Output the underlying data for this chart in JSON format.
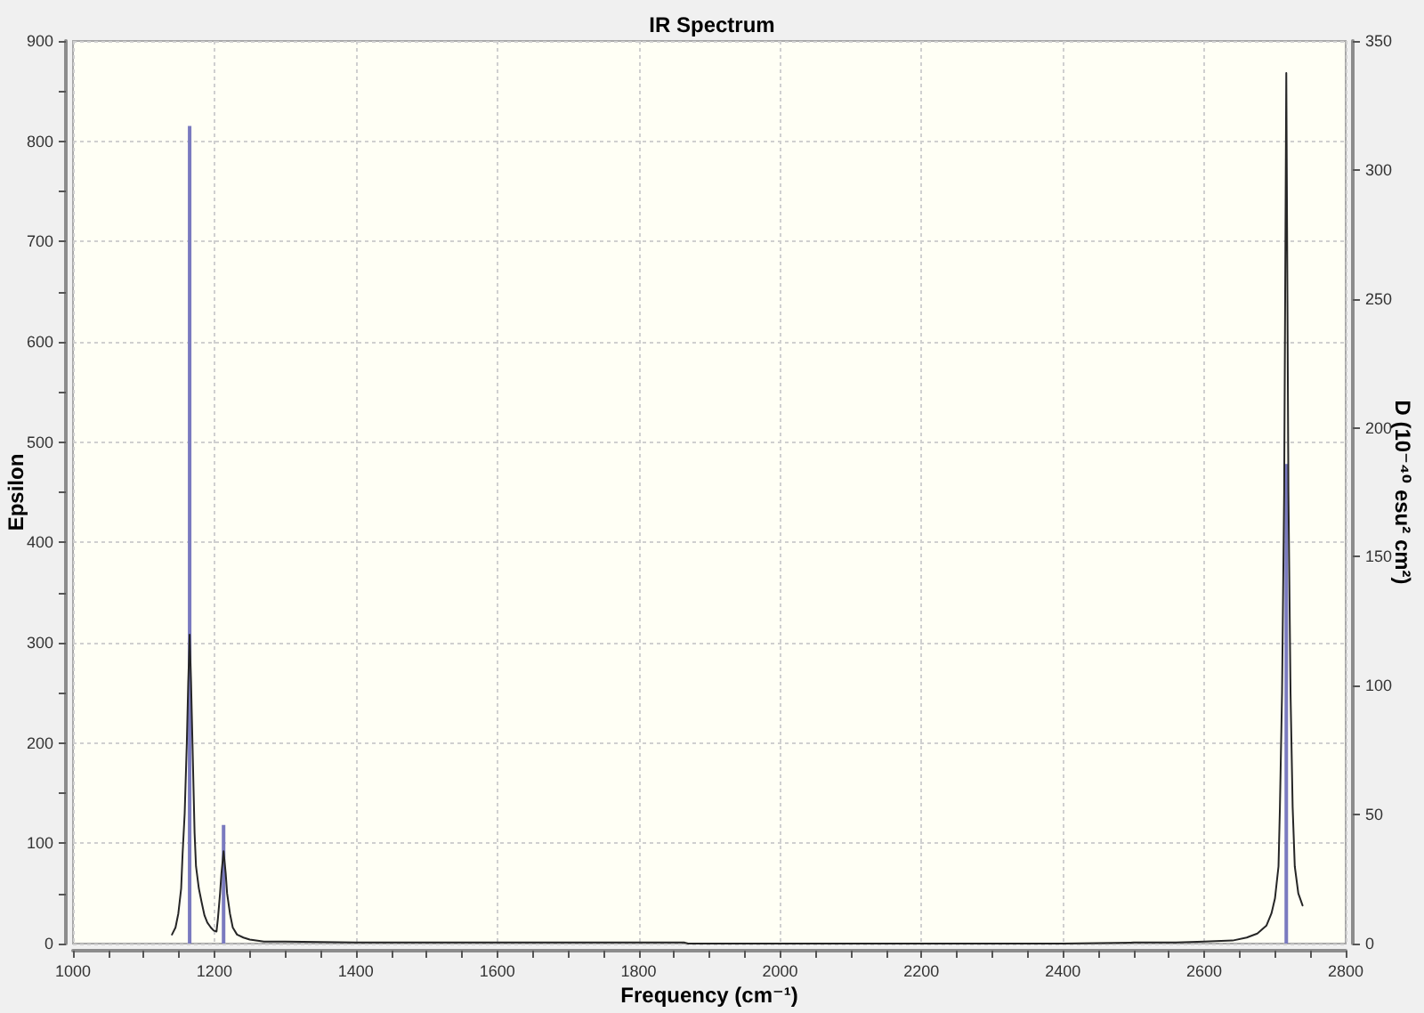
{
  "chart_data": {
    "type": "line",
    "title": "IR Spectrum",
    "xlabel": "Frequency (cm⁻¹)",
    "ylabel": "Epsilon",
    "y2label": "D (10⁻⁴⁰ esu² cm²)",
    "xlim": [
      1000,
      2800
    ],
    "xticks": [
      1000,
      {
        "value": 1050,
        "label": null
      },
      {
        "value": 1100,
        "label": null
      },
      {
        "value": 1150,
        "label": null
      },
      1200,
      {
        "value": 1250,
        "label": null
      },
      {
        "value": 1300,
        "label": null
      },
      {
        "value": 1350,
        "label": null
      },
      1400,
      {
        "value": 1450,
        "label": null
      },
      {
        "value": 1500,
        "label": null
      },
      {
        "value": 1550,
        "label": null
      },
      1600,
      {
        "value": 1650,
        "label": null
      },
      {
        "value": 1700,
        "label": null
      },
      {
        "value": 1750,
        "label": null
      },
      1800,
      {
        "value": 1850,
        "label": null
      },
      {
        "value": 1900,
        "label": null
      },
      {
        "value": 1950,
        "label": null
      },
      2000,
      {
        "value": 2050,
        "label": null
      },
      {
        "value": 2100,
        "label": null
      },
      {
        "value": 2150,
        "label": null
      },
      2200,
      {
        "value": 2250,
        "label": null
      },
      {
        "value": 2300,
        "label": null
      },
      {
        "value": 2350,
        "label": null
      },
      2400,
      {
        "value": 2450,
        "label": null
      },
      {
        "value": 2500,
        "label": null
      },
      {
        "value": 2550,
        "label": null
      },
      2600,
      {
        "value": 2650,
        "label": null
      },
      {
        "value": 2700,
        "label": null
      },
      {
        "value": 2750,
        "label": null
      },
      2800
    ],
    "ylim": [
      0,
      900
    ],
    "yticks": [
      0,
      {
        "value": 50,
        "label": null
      },
      100,
      {
        "value": 150,
        "label": null
      },
      200,
      {
        "value": 250,
        "label": null
      },
      300,
      {
        "value": 350,
        "label": null
      },
      400,
      {
        "value": 450,
        "label": null
      },
      500,
      {
        "value": 550,
        "label": null
      },
      600,
      {
        "value": 650,
        "label": null
      },
      700,
      {
        "value": 750,
        "label": null
      },
      800,
      {
        "value": 850,
        "label": null
      },
      900
    ],
    "y2lim": [
      0,
      350
    ],
    "y2ticks": [
      0,
      50,
      100,
      150,
      200,
      250,
      300,
      350
    ],
    "grid": true,
    "marker": "none",
    "series": [
      {
        "color": "#262626",
        "x": [
          1140,
          1145,
          1149,
          1153,
          1155,
          1158,
          1161,
          1163,
          1165,
          1167,
          1169,
          1172,
          1174,
          1178,
          1182,
          1186,
          1190,
          1195,
          1199,
          1203,
          1205,
          1208,
          1210,
          1213,
          1216,
          1218,
          1222,
          1226,
          1232,
          1241,
          1250,
          1270,
          1300,
          1400,
          1600,
          1800,
          1865,
          1870,
          2000,
          2200,
          2400,
          2500,
          2560,
          2600,
          2640,
          2660,
          2675,
          2688,
          2695,
          2700,
          2705,
          2707,
          2710,
          2713,
          2716,
          2719,
          2722,
          2725,
          2728,
          2733,
          2739
        ],
        "values": [
          9,
          16,
          30,
          55,
          89,
          130,
          200,
          260,
          308,
          260,
          200,
          110,
          77,
          55,
          41,
          28,
          21,
          16,
          13,
          12,
          25,
          50,
          70,
          92,
          70,
          50,
          30,
          16,
          9,
          6,
          4,
          2,
          2,
          1,
          1,
          1,
          1,
          0,
          0,
          0,
          0,
          1,
          1,
          2,
          3,
          6,
          10,
          18,
          30,
          45,
          77,
          136,
          250,
          450,
          868,
          450,
          250,
          136,
          77,
          50,
          38
        ]
      },
      {
        "type": "bar",
        "axis": "y2",
        "color": "#7a7abf",
        "x": [
          1165,
          1213,
          2716
        ],
        "values": [
          317,
          46,
          186
        ]
      }
    ]
  }
}
